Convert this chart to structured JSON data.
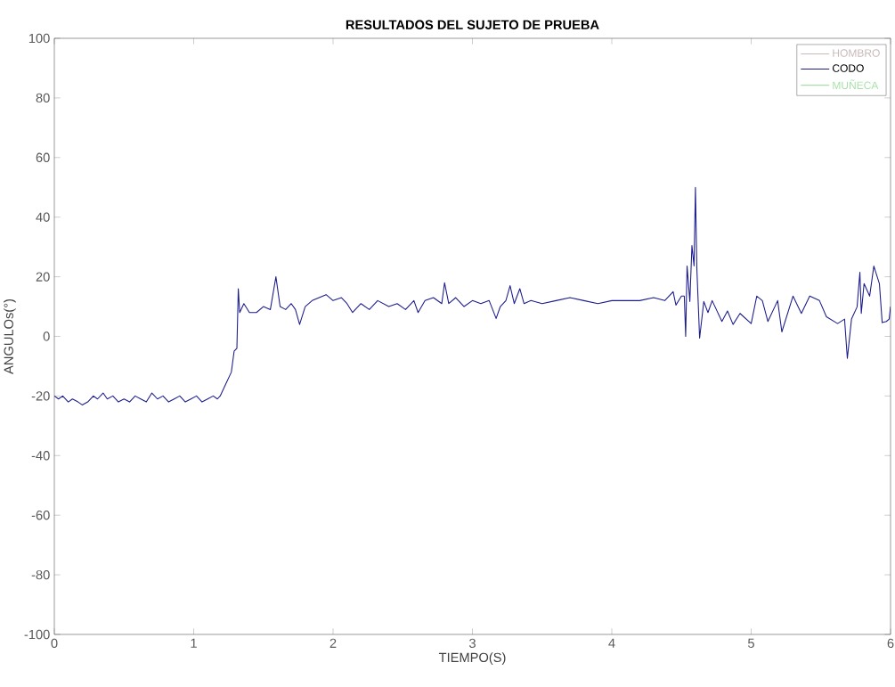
{
  "chart_data": {
    "type": "line",
    "title": "RESULTADOS DEL SUJETO DE PRUEBA",
    "xlabel": "TIEMPO(S)",
    "ylabel": "ANGULOs(°)",
    "xlim": [
      0,
      6
    ],
    "ylim": [
      -100,
      100
    ],
    "xticks": [
      0,
      1,
      2,
      3,
      4,
      5,
      6
    ],
    "yticks": [
      -100,
      -80,
      -60,
      -40,
      -20,
      0,
      20,
      40,
      60,
      80,
      100
    ],
    "grid": false,
    "legend": "top right",
    "line_style": "solid",
    "marker": "none",
    "series": [
      {
        "name": "HOMBRO",
        "color": "#c8b8b8"
      },
      {
        "name": "CODO",
        "color": "#1c1c8c",
        "x": [
          0,
          0.03,
          0.06,
          0.1,
          0.13,
          0.17,
          0.2,
          0.24,
          0.28,
          0.31,
          0.35,
          0.38,
          0.42,
          0.46,
          0.5,
          0.54,
          0.58,
          0.62,
          0.66,
          0.7,
          0.74,
          0.78,
          0.82,
          0.86,
          0.9,
          0.94,
          0.98,
          1.02,
          1.06,
          1.1,
          1.14,
          1.17,
          1.19,
          1.23,
          1.27,
          1.29,
          1.31,
          1.32,
          1.33,
          1.36,
          1.4,
          1.45,
          1.5,
          1.55,
          1.59,
          1.62,
          1.66,
          1.7,
          1.73,
          1.76,
          1.8,
          1.85,
          1.9,
          1.95,
          2.0,
          2.06,
          2.1,
          2.14,
          2.2,
          2.26,
          2.32,
          2.4,
          2.46,
          2.52,
          2.58,
          2.61,
          2.66,
          2.72,
          2.78,
          2.8,
          2.83,
          2.88,
          2.94,
          3.0,
          3.06,
          3.12,
          3.17,
          3.2,
          3.24,
          3.27,
          3.3,
          3.34,
          3.37,
          3.42,
          3.5,
          3.6,
          3.7,
          3.8,
          3.9,
          4.0,
          4.1,
          4.2,
          4.3,
          4.38,
          4.44,
          4.46,
          4.5,
          4.52,
          4.53,
          4.54,
          4.56,
          4.575,
          4.59,
          4.6,
          4.61,
          4.63,
          4.66,
          4.69,
          4.72,
          4.79,
          4.83,
          4.87,
          4.92,
          5.0,
          5.04,
          5.08,
          5.12,
          5.19,
          5.22,
          5.3,
          5.36,
          5.42,
          5.49,
          5.54,
          5.62,
          5.67,
          5.69,
          5.72,
          5.76,
          5.78,
          5.79,
          5.81,
          5.85,
          5.88,
          5.92,
          5.94,
          5.97,
          5.99,
          6.0
        ],
        "values": [
          -20,
          -21,
          -20,
          -22,
          -21,
          -22,
          -23,
          -22,
          -20,
          -21,
          -19,
          -21,
          -20,
          -22,
          -21,
          -22,
          -20,
          -21,
          -22,
          -19,
          -21,
          -20,
          -22,
          -21,
          -20,
          -22,
          -21,
          -20,
          -22,
          -21,
          -20,
          -21,
          -20,
          -16,
          -12,
          -5,
          -4,
          16,
          8,
          11,
          8,
          8,
          10,
          9,
          20,
          10,
          9,
          11,
          9,
          4,
          10,
          12,
          13,
          14,
          12,
          13,
          11,
          8,
          11,
          9,
          12,
          10,
          11,
          9,
          12,
          8,
          12,
          13,
          11,
          18,
          11,
          13,
          10,
          12,
          11,
          12,
          6,
          10,
          12,
          17,
          11,
          16,
          11,
          12,
          11,
          12,
          13,
          12,
          11,
          12,
          12,
          12,
          13,
          12,
          15,
          10.5,
          13.5,
          13.5,
          0,
          23.6,
          11.7,
          30.5,
          23.6,
          50,
          23,
          -0.6,
          11.7,
          8,
          12,
          5,
          8.5,
          4,
          7.7,
          4.3,
          13.5,
          12,
          5,
          12,
          1.5,
          13.5,
          7.7,
          13.5,
          12,
          6.6,
          4.3,
          5.8,
          -7.4,
          5.8,
          9.9,
          21.5,
          7.7,
          17.7,
          13.5,
          23.6,
          17.7,
          4.6,
          5,
          5.8,
          10
        ]
      },
      {
        "name": "MUÑECA",
        "color": "#a8e0a8"
      }
    ]
  }
}
